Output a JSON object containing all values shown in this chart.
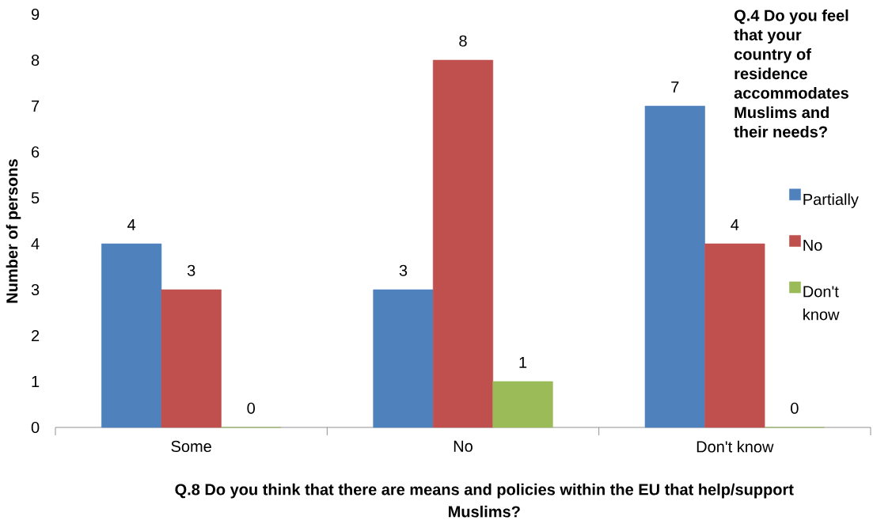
{
  "chart_data": {
    "type": "bar",
    "xlabel": "Q.8 Do you think that there are means and policies within the EU that help/support Muslims?",
    "ylabel": "Number of persons",
    "legend_title": "Q.4 Do you feel that your country of residence accommodates Muslims and their needs?",
    "categories": [
      "Some",
      "No",
      "Don't know"
    ],
    "series": [
      {
        "name": "Partially",
        "color": "#4f81bd",
        "values": [
          4,
          3,
          7
        ],
        "value_labels": [
          "4",
          "3",
          "7"
        ]
      },
      {
        "name": "No",
        "color": "#c0504d",
        "values": [
          3,
          8,
          4
        ],
        "value_labels": [
          "3",
          "8",
          "4"
        ]
      },
      {
        "name": "Don't know",
        "color": "#9bbb59",
        "values": [
          0,
          1,
          0
        ],
        "value_labels": [
          "0",
          "1",
          "0"
        ]
      }
    ],
    "ylim": [
      0,
      9
    ],
    "yticks": [
      0,
      1,
      2,
      3,
      4,
      5,
      6,
      7,
      8,
      9
    ],
    "legend": "right"
  }
}
